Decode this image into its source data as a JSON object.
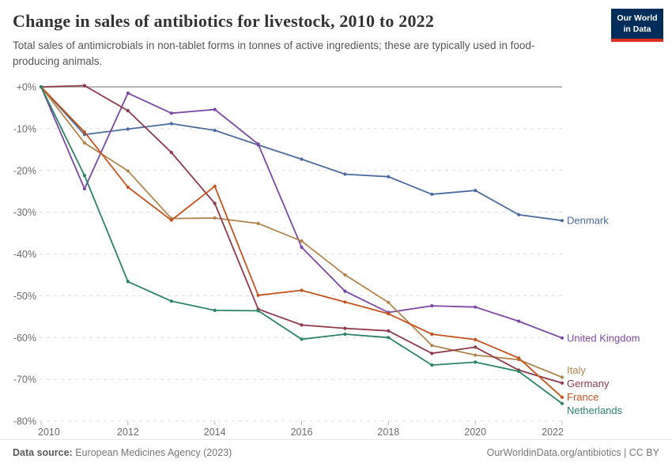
{
  "header": {
    "title": "Change in sales of antibiotics for livestock, 2010 to 2022",
    "subtitle": "Total sales of antimicrobials in non-tablet forms in tonnes of active ingredients; these are typically used in food-producing animals.",
    "logo": {
      "line1": "Our World",
      "line2": "in Data",
      "bg_color": "#002D59",
      "accent_color": "#DC3022"
    }
  },
  "chart_data": {
    "type": "line",
    "title": "Change in sales of antibiotics for livestock, 2010 to 2022",
    "ylabel": "",
    "xlabel": "",
    "unit": "%",
    "ylim": [
      -80,
      0
    ],
    "grid": "horizontal-dashed",
    "legend_position": "line-end-labels",
    "x": [
      2010,
      2011,
      2012,
      2013,
      2014,
      2015,
      2016,
      2017,
      2018,
      2019,
      2020,
      2021,
      2022
    ],
    "x_tick_labels": [
      "2010",
      "2012",
      "2014",
      "2016",
      "2018",
      "2020",
      "2022"
    ],
    "y_tick_values": [
      0,
      -10,
      -20,
      -30,
      -40,
      -50,
      -60,
      -70,
      -80
    ],
    "y_tick_labels": [
      "+0%",
      "-10%",
      "-20%",
      "-30%",
      "-40%",
      "-50%",
      "-60%",
      "-70%",
      "-80%"
    ],
    "series": [
      {
        "name": "Denmark",
        "color": "#4C6BA0",
        "values": [
          0,
          -11.4,
          -10.1,
          -8.8,
          -10.4,
          -13.9,
          -17.3,
          -20.9,
          -21.5,
          -25.7,
          -24.8,
          -30.6,
          -32.0
        ]
      },
      {
        "name": "United Kingdom",
        "color": "#7C48A5",
        "values": [
          0,
          -24.4,
          -1.5,
          -6.3,
          -5.4,
          -13.7,
          -38.4,
          -48.9,
          -54.0,
          -52.4,
          -52.7,
          -56.1,
          -60.1
        ]
      },
      {
        "name": "Italy",
        "color": "#B3854E",
        "values": [
          0,
          -13.4,
          -20.1,
          -31.5,
          -31.4,
          -32.7,
          -36.9,
          -45.0,
          -51.6,
          -61.9,
          -64.2,
          -65.3,
          -69.5
        ]
      },
      {
        "name": "Germany",
        "color": "#8F3A49",
        "values": [
          0,
          0.3,
          -5.7,
          -15.7,
          -27.9,
          -53.2,
          -57.0,
          -57.8,
          -58.4,
          -63.8,
          -62.3,
          -67.8,
          -70.9
        ]
      },
      {
        "name": "France",
        "color": "#C4531D",
        "values": [
          0,
          -10.8,
          -24.0,
          -31.9,
          -23.8,
          -49.9,
          -48.7,
          -51.5,
          -54.3,
          -59.2,
          -60.5,
          -64.9,
          -74.3
        ]
      },
      {
        "name": "Netherlands",
        "color": "#2C8465",
        "values": [
          0,
          -21.2,
          -46.6,
          -51.3,
          -53.5,
          -53.6,
          -60.4,
          -59.2,
          -60.0,
          -66.6,
          -65.9,
          -68.1,
          -75.8
        ]
      }
    ],
    "style": {
      "zero_line_color": "#b8b8b8",
      "grid_color": "#dcdcdc",
      "tick_label_color": "#6b6b6b"
    }
  },
  "footer": {
    "data_source_label": "Data source:",
    "data_source_value": "European Medicines Agency (2023)",
    "license": "OurWorldinData.org/antibiotics | CC BY"
  }
}
